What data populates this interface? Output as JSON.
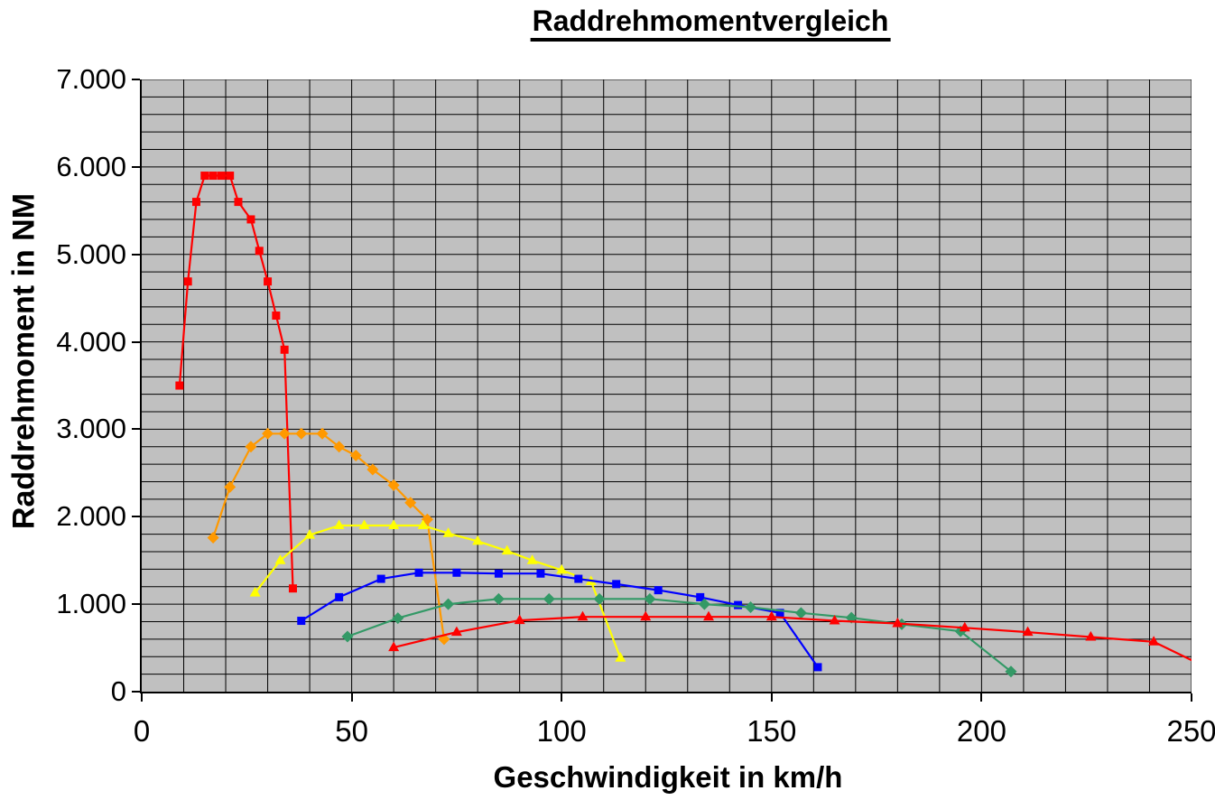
{
  "chart_data": {
    "type": "line",
    "title": "Raddrehmomentvergleich",
    "xlabel": "Geschwindigkeit in km/h",
    "ylabel": "Raddrehmoment in NM",
    "xlim": [
      0,
      250
    ],
    "ylim": [
      0,
      7000
    ],
    "x_major_ticks": [
      0,
      50,
      100,
      150,
      200,
      250
    ],
    "x_tick_labels": [
      "0",
      "50",
      "100",
      "150",
      "200",
      "250"
    ],
    "y_major_ticks": [
      0,
      1000,
      2000,
      3000,
      4000,
      5000,
      6000,
      7000
    ],
    "y_tick_labels": [
      "0",
      "1.000",
      "2.000",
      "3.000",
      "4.000",
      "5.000",
      "6.000",
      "7.000"
    ],
    "grid": {
      "x_step": 10,
      "y_step": 200,
      "line_color": "#000000",
      "plot_bg": "#C0C0C0"
    },
    "legend": "none",
    "series": [
      {
        "id": "series-1-red-squares",
        "color": "#FF0000",
        "marker": "square",
        "points": [
          [
            9,
            3500
          ],
          [
            11,
            4690
          ],
          [
            13,
            5600
          ],
          [
            15,
            5900
          ],
          [
            17,
            5900
          ],
          [
            19,
            5900
          ],
          [
            21,
            5900
          ],
          [
            23,
            5600
          ],
          [
            26,
            5400
          ],
          [
            28,
            5040
          ],
          [
            30,
            4690
          ],
          [
            32,
            4300
          ],
          [
            34,
            3910
          ],
          [
            36,
            1180
          ]
        ]
      },
      {
        "id": "series-2-orange-diamonds",
        "color": "#FF9900",
        "marker": "diamond",
        "points": [
          [
            17,
            1760
          ],
          [
            21,
            2340
          ],
          [
            26,
            2800
          ],
          [
            30,
            2950
          ],
          [
            34,
            2950
          ],
          [
            38,
            2950
          ],
          [
            43,
            2950
          ],
          [
            47,
            2800
          ],
          [
            51,
            2700
          ],
          [
            55,
            2540
          ],
          [
            60,
            2360
          ],
          [
            64,
            2160
          ],
          [
            68,
            1970
          ],
          [
            72,
            600
          ]
        ]
      },
      {
        "id": "series-3-yellow-triangles",
        "color": "#FFFF00",
        "marker": "triangle",
        "points": [
          [
            27,
            1130
          ],
          [
            33,
            1500
          ],
          [
            40,
            1790
          ],
          [
            47,
            1900
          ],
          [
            53,
            1900
          ],
          [
            60,
            1900
          ],
          [
            67,
            1900
          ],
          [
            73,
            1810
          ],
          [
            80,
            1720
          ],
          [
            87,
            1610
          ],
          [
            93,
            1500
          ],
          [
            100,
            1390
          ],
          [
            107,
            1260
          ],
          [
            114,
            385
          ]
        ]
      },
      {
        "id": "series-4-blue-squares",
        "color": "#0000FF",
        "marker": "square",
        "points": [
          [
            38,
            810
          ],
          [
            47,
            1080
          ],
          [
            57,
            1290
          ],
          [
            66,
            1360
          ],
          [
            75,
            1360
          ],
          [
            85,
            1350
          ],
          [
            95,
            1350
          ],
          [
            104,
            1290
          ],
          [
            113,
            1230
          ],
          [
            123,
            1160
          ],
          [
            133,
            1080
          ],
          [
            142,
            990
          ],
          [
            152,
            900
          ],
          [
            161,
            280
          ]
        ]
      },
      {
        "id": "series-5-green-diamonds",
        "color": "#339966",
        "marker": "diamond",
        "points": [
          [
            49,
            630
          ],
          [
            61,
            840
          ],
          [
            73,
            1000
          ],
          [
            85,
            1060
          ],
          [
            97,
            1060
          ],
          [
            109,
            1060
          ],
          [
            121,
            1060
          ],
          [
            134,
            1000
          ],
          [
            145,
            965
          ],
          [
            157,
            900
          ],
          [
            169,
            845
          ],
          [
            181,
            770
          ],
          [
            195,
            690
          ],
          [
            207,
            230
          ]
        ]
      },
      {
        "id": "series-6-red-triangles",
        "color": "#FF0000",
        "marker": "triangle",
        "last_point_marker": false,
        "points": [
          [
            60,
            505
          ],
          [
            75,
            680
          ],
          [
            90,
            815
          ],
          [
            105,
            855
          ],
          [
            120,
            855
          ],
          [
            135,
            855
          ],
          [
            150,
            855
          ],
          [
            165,
            810
          ],
          [
            180,
            780
          ],
          [
            196,
            730
          ],
          [
            211,
            680
          ],
          [
            226,
            625
          ],
          [
            241,
            570
          ],
          [
            250,
            360
          ]
        ]
      }
    ]
  }
}
